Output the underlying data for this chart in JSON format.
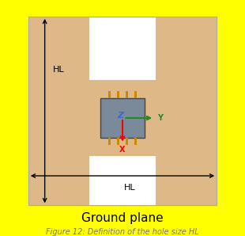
{
  "bg_color": "#FFFF00",
  "board_color": "#DEB887",
  "hole_color": "#FFFFFF",
  "chip_color": "#7A8A9A",
  "chip_border": "#444444",
  "title": "Ground plane",
  "caption": "Figure 12: Definition of the hole size HL",
  "HL_label": "HL",
  "axis_x_color": "#FF0000",
  "axis_y_color": "#228B22",
  "axis_z_color": "#4466CC",
  "pin_color": "#CC8800",
  "arrow_color": "#000000",
  "border_color": "#AAAAAA",
  "title_fontsize": 11,
  "caption_fontsize": 7
}
